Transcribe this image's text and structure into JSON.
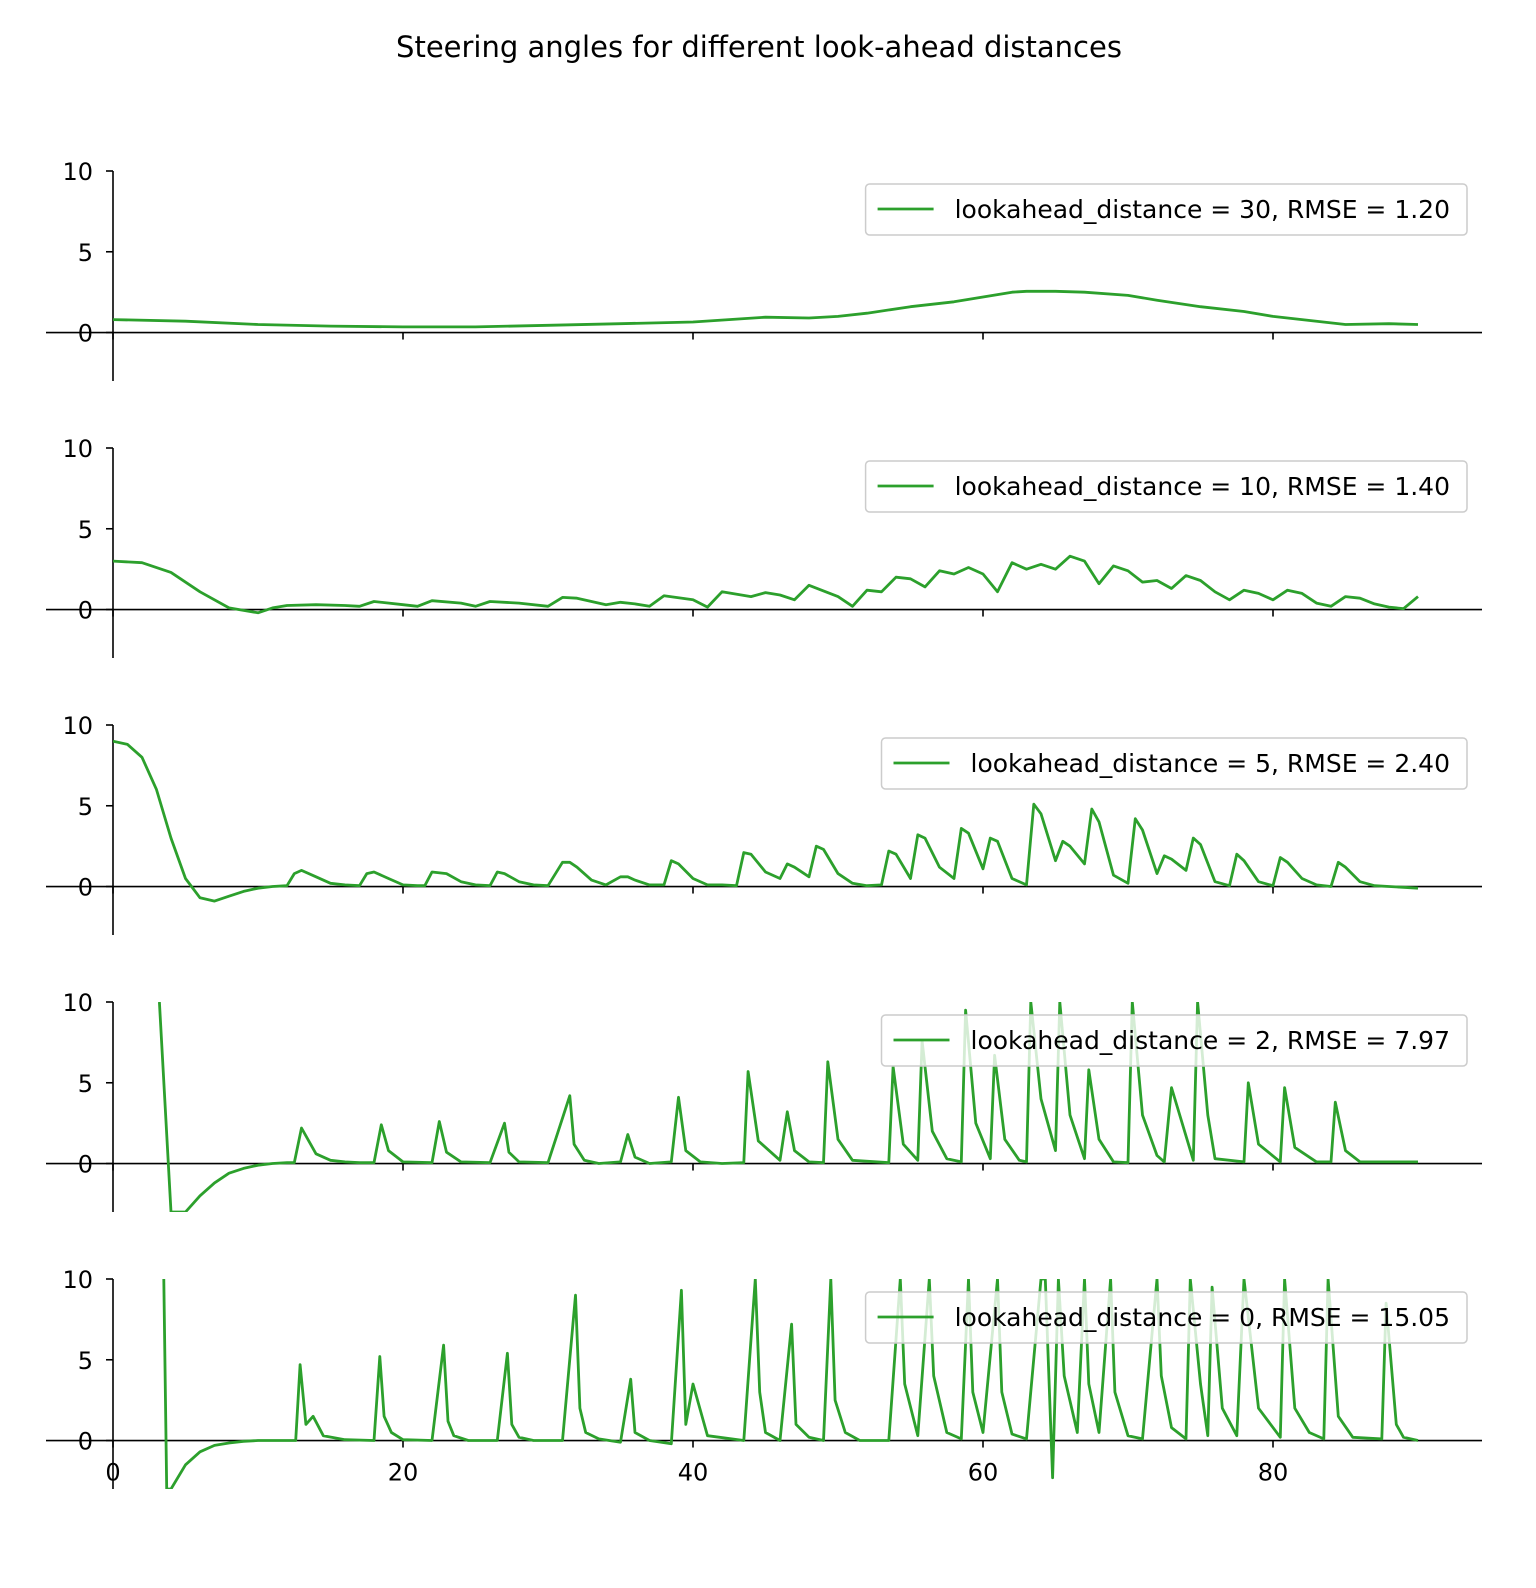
{
  "chart_data": {
    "type": "line",
    "title": "Steering angles for different look-ahead distances",
    "xlabel": "",
    "ylabel": "",
    "xlim": [
      0,
      94.5
    ],
    "ylim": [
      -3,
      10
    ],
    "x_ticks": [
      0,
      20,
      40,
      60,
      80
    ],
    "y_ticks": [
      10,
      5,
      0
    ],
    "grid": false,
    "legend_placement": "upper right",
    "line_color": "#2ca02c",
    "panels": [
      {
        "lookahead_distance": 30,
        "legend_label": "lookahead_distance = 30, RMSE = 1.20",
        "series": {
          "x": [
            0,
            5,
            10,
            15,
            20,
            25,
            30,
            35,
            40,
            45,
            48,
            50,
            52,
            55,
            58,
            60,
            62,
            63,
            65,
            67,
            70,
            72,
            75,
            78,
            80,
            82,
            85,
            88,
            90
          ],
          "y": [
            0.8,
            0.7,
            0.5,
            0.4,
            0.35,
            0.35,
            0.45,
            0.55,
            0.65,
            0.95,
            0.9,
            1.0,
            1.2,
            1.6,
            1.9,
            2.2,
            2.5,
            2.55,
            2.55,
            2.5,
            2.3,
            2.0,
            1.6,
            1.3,
            1.0,
            0.8,
            0.5,
            0.55,
            0.5
          ]
        }
      },
      {
        "lookahead_distance": 10,
        "legend_label": "lookahead_distance = 10, RMSE = 1.40",
        "series": {
          "x": [
            0,
            2,
            4,
            6,
            8,
            10,
            11,
            12,
            14,
            16,
            17,
            18,
            20,
            21,
            22,
            24,
            25,
            26,
            28,
            30,
            31,
            32,
            34,
            35,
            36,
            37,
            38,
            40,
            41,
            42,
            44,
            45,
            46,
            47,
            48,
            50,
            51,
            52,
            53,
            54,
            55,
            56,
            57,
            58,
            59,
            60,
            61,
            62,
            63,
            64,
            65,
            66,
            67,
            68,
            69,
            70,
            71,
            72,
            73,
            74,
            75,
            76,
            77,
            78,
            79,
            80,
            81,
            82,
            83,
            84,
            85,
            86,
            87,
            88,
            89,
            90
          ],
          "y": [
            3.0,
            2.9,
            2.3,
            1.1,
            0.1,
            -0.2,
            0.1,
            0.25,
            0.3,
            0.25,
            0.2,
            0.5,
            0.3,
            0.2,
            0.55,
            0.4,
            0.2,
            0.5,
            0.4,
            0.2,
            0.75,
            0.7,
            0.3,
            0.45,
            0.35,
            0.2,
            0.85,
            0.6,
            0.15,
            1.1,
            0.8,
            1.05,
            0.9,
            0.6,
            1.5,
            0.8,
            0.2,
            1.2,
            1.1,
            2.0,
            1.9,
            1.4,
            2.4,
            2.2,
            2.6,
            2.2,
            1.1,
            2.9,
            2.5,
            2.8,
            2.5,
            3.3,
            3.0,
            1.6,
            2.7,
            2.4,
            1.7,
            1.8,
            1.3,
            2.1,
            1.8,
            1.1,
            0.6,
            1.2,
            1.0,
            0.6,
            1.2,
            1.0,
            0.4,
            0.2,
            0.8,
            0.7,
            0.35,
            0.15,
            0.05,
            0.8
          ]
        }
      },
      {
        "lookahead_distance": 5,
        "legend_label": "lookahead_distance = 5, RMSE = 2.40",
        "series": {
          "x": [
            0,
            1,
            2,
            3,
            4,
            5,
            6,
            7,
            8,
            9,
            10,
            11,
            12,
            12.5,
            13,
            14,
            15,
            16,
            17,
            17.5,
            18,
            19,
            20,
            21,
            21.5,
            22,
            23,
            24,
            25,
            26,
            26.5,
            27,
            28,
            29,
            30,
            31,
            31.5,
            32,
            33,
            34,
            35,
            35.5,
            36,
            37,
            38,
            38.5,
            39,
            40,
            41,
            42,
            43,
            43.5,
            44,
            45,
            46,
            46.5,
            47,
            48,
            48.5,
            49,
            50,
            51,
            52,
            53,
            53.5,
            54,
            55,
            55.5,
            56,
            57,
            58,
            58.5,
            59,
            60,
            60.5,
            61,
            62,
            63,
            63.5,
            64,
            65,
            65.5,
            66,
            67,
            67.5,
            68,
            69,
            70,
            70.5,
            71,
            72,
            72.5,
            73,
            74,
            74.5,
            75,
            76,
            77,
            77.5,
            78,
            79,
            80,
            80.5,
            81,
            82,
            83,
            84,
            84.5,
            85,
            86,
            87,
            88,
            89,
            90
          ],
          "y": [
            9.0,
            8.8,
            8.0,
            6.0,
            3.0,
            0.5,
            -0.7,
            -0.9,
            -0.6,
            -0.3,
            -0.1,
            0.0,
            0.05,
            0.8,
            1.0,
            0.6,
            0.2,
            0.1,
            0.05,
            0.8,
            0.9,
            0.5,
            0.1,
            0.05,
            0.05,
            0.9,
            0.8,
            0.3,
            0.1,
            0.05,
            0.9,
            0.8,
            0.3,
            0.1,
            0.05,
            1.5,
            1.5,
            1.2,
            0.4,
            0.1,
            0.6,
            0.6,
            0.4,
            0.1,
            0.1,
            1.6,
            1.4,
            0.5,
            0.1,
            0.1,
            0.05,
            2.1,
            2.0,
            0.9,
            0.5,
            1.4,
            1.2,
            0.6,
            2.5,
            2.3,
            0.8,
            0.2,
            0.05,
            0.1,
            2.2,
            2.0,
            0.5,
            3.2,
            3.0,
            1.2,
            0.5,
            3.6,
            3.3,
            1.1,
            3.0,
            2.8,
            0.5,
            0.1,
            5.1,
            4.5,
            1.6,
            2.8,
            2.5,
            1.4,
            4.8,
            4.0,
            0.7,
            0.2,
            4.2,
            3.5,
            0.8,
            1.9,
            1.7,
            1.0,
            3.0,
            2.6,
            0.3,
            0.05,
            2.0,
            1.6,
            0.3,
            0.05,
            1.8,
            1.5,
            0.5,
            0.1,
            0.0,
            1.5,
            1.2,
            0.3,
            0.05,
            0.0,
            -0.05,
            -0.1
          ]
        }
      },
      {
        "lookahead_distance": 2,
        "legend_label": "lookahead_distance = 2, RMSE = 7.97",
        "series": {
          "x": [
            3.2,
            4.0,
            5.0,
            6.0,
            7.0,
            8.0,
            9.0,
            10.0,
            11.0,
            12.0,
            12.5,
            13.0,
            14.0,
            15.0,
            16.0,
            17.0,
            18.0,
            18.5,
            19.0,
            20.0,
            22.0,
            22.5,
            23.0,
            24.0,
            26.0,
            27.0,
            27.3,
            28.0,
            30.0,
            31.5,
            31.8,
            32.5,
            33.5,
            35.0,
            35.5,
            36.0,
            37.0,
            38.5,
            39.0,
            39.5,
            40.5,
            42.0,
            43.5,
            43.8,
            44.5,
            46.0,
            46.5,
            47.0,
            48.0,
            49.0,
            49.3,
            50.0,
            51.0,
            53.5,
            53.8,
            54.5,
            55.5,
            55.8,
            56.5,
            57.5,
            58.5,
            58.8,
            59.5,
            60.5,
            60.8,
            61.5,
            62.5,
            63.0,
            63.3,
            64.0,
            65.0,
            65.3,
            66.0,
            67.0,
            67.3,
            68.0,
            69.0,
            70.0,
            70.3,
            71.0,
            72.0,
            72.5,
            73.0,
            74.5,
            74.8,
            75.5,
            76.0,
            78.0,
            78.3,
            79.0,
            80.5,
            80.8,
            81.5,
            83.0,
            84.0,
            84.3,
            85.0,
            86.0,
            88.0,
            90.0
          ],
          "y": [
            10.0,
            -3.0,
            -3.0,
            -2.0,
            -1.2,
            -0.6,
            -0.3,
            -0.1,
            0.0,
            0.05,
            0.05,
            2.2,
            0.6,
            0.2,
            0.1,
            0.05,
            0.05,
            2.4,
            0.8,
            0.1,
            0.05,
            2.6,
            0.7,
            0.1,
            0.05,
            2.5,
            0.7,
            0.1,
            0.05,
            4.2,
            1.2,
            0.2,
            0.0,
            0.1,
            1.8,
            0.4,
            0.0,
            0.1,
            4.1,
            0.8,
            0.1,
            0.0,
            0.05,
            5.7,
            1.4,
            0.2,
            3.2,
            0.8,
            0.1,
            0.05,
            6.3,
            1.5,
            0.2,
            0.05,
            6.0,
            1.2,
            0.2,
            7.6,
            2.0,
            0.3,
            0.1,
            9.5,
            2.5,
            0.3,
            6.7,
            1.5,
            0.2,
            0.1,
            10.0,
            4.0,
            0.8,
            10.0,
            3.0,
            0.3,
            5.8,
            1.5,
            0.1,
            0.05,
            10.0,
            3.0,
            0.5,
            0.1,
            4.7,
            0.2,
            10.0,
            3.0,
            0.3,
            0.1,
            5.0,
            1.2,
            0.1,
            4.7,
            1.0,
            0.1,
            0.1,
            3.8,
            0.8,
            0.1,
            0.1,
            0.1
          ]
        }
      },
      {
        "lookahead_distance": 0,
        "legend_label": "lookahead_distance = 0, RMSE = 15.05",
        "series": {
          "x": [
            3.5,
            3.7,
            4.0,
            5.0,
            6.0,
            7.0,
            8.0,
            9.0,
            10.0,
            11.0,
            12.0,
            12.6,
            12.9,
            13.3,
            13.8,
            14.5,
            16.0,
            18.0,
            18.4,
            18.7,
            19.2,
            20.0,
            22.0,
            22.8,
            23.1,
            23.5,
            24.5,
            26.5,
            27.2,
            27.5,
            28.0,
            29.0,
            31.0,
            31.9,
            32.2,
            32.6,
            33.5,
            35.0,
            35.7,
            36.0,
            37.0,
            38.5,
            39.2,
            39.5,
            40.0,
            41.0,
            43.5,
            44.3,
            44.6,
            45.0,
            46.0,
            46.8,
            47.1,
            48.0,
            49.0,
            49.5,
            49.8,
            50.5,
            51.5,
            53.5,
            54.3,
            54.6,
            55.5,
            56.3,
            56.6,
            57.5,
            58.5,
            59.0,
            59.3,
            60.0,
            61.0,
            61.3,
            62.0,
            63.0,
            64.0,
            64.3,
            64.8,
            65.2,
            65.6,
            66.5,
            67.0,
            67.3,
            68.0,
            68.8,
            69.1,
            70.0,
            71.0,
            72.0,
            72.3,
            73.0,
            74.0,
            74.3,
            75.0,
            75.5,
            75.8,
            76.5,
            77.5,
            78.0,
            79.0,
            80.5,
            80.8,
            81.5,
            82.5,
            83.5,
            83.8,
            84.5,
            85.5,
            87.5,
            87.8,
            88.5,
            89.0,
            90.0
          ],
          "y": [
            10.0,
            -3.0,
            -3.0,
            -1.5,
            -0.7,
            -0.3,
            -0.15,
            -0.05,
            0.0,
            0.0,
            0.0,
            0.0,
            4.7,
            1.0,
            1.5,
            0.3,
            0.05,
            0.0,
            5.2,
            1.5,
            0.5,
            0.05,
            0.0,
            5.9,
            1.2,
            0.3,
            0.0,
            0.0,
            5.4,
            1.0,
            0.2,
            0.0,
            0.0,
            9.0,
            2.0,
            0.5,
            0.1,
            -0.1,
            3.8,
            0.5,
            0.0,
            -0.2,
            9.3,
            1.0,
            3.5,
            0.3,
            0.0,
            10.0,
            3.0,
            0.5,
            0.0,
            7.2,
            1.0,
            0.2,
            0.0,
            10.0,
            2.5,
            0.5,
            0.0,
            0.0,
            10.0,
            3.5,
            0.3,
            10.0,
            4.0,
            0.5,
            0.1,
            10.0,
            3.0,
            0.5,
            10.0,
            3.0,
            0.4,
            0.1,
            10.0,
            10.0,
            -2.3,
            10.0,
            4.0,
            0.5,
            10.0,
            3.5,
            0.5,
            10.0,
            3.0,
            0.3,
            0.1,
            10.0,
            4.0,
            0.8,
            0.1,
            10.0,
            3.5,
            0.3,
            9.5,
            2.0,
            0.3,
            10.0,
            2.0,
            0.2,
            10.0,
            2.0,
            0.5,
            0.1,
            10.0,
            1.5,
            0.2,
            0.1,
            8.5,
            1.0,
            0.2,
            0.0
          ]
        }
      }
    ]
  }
}
